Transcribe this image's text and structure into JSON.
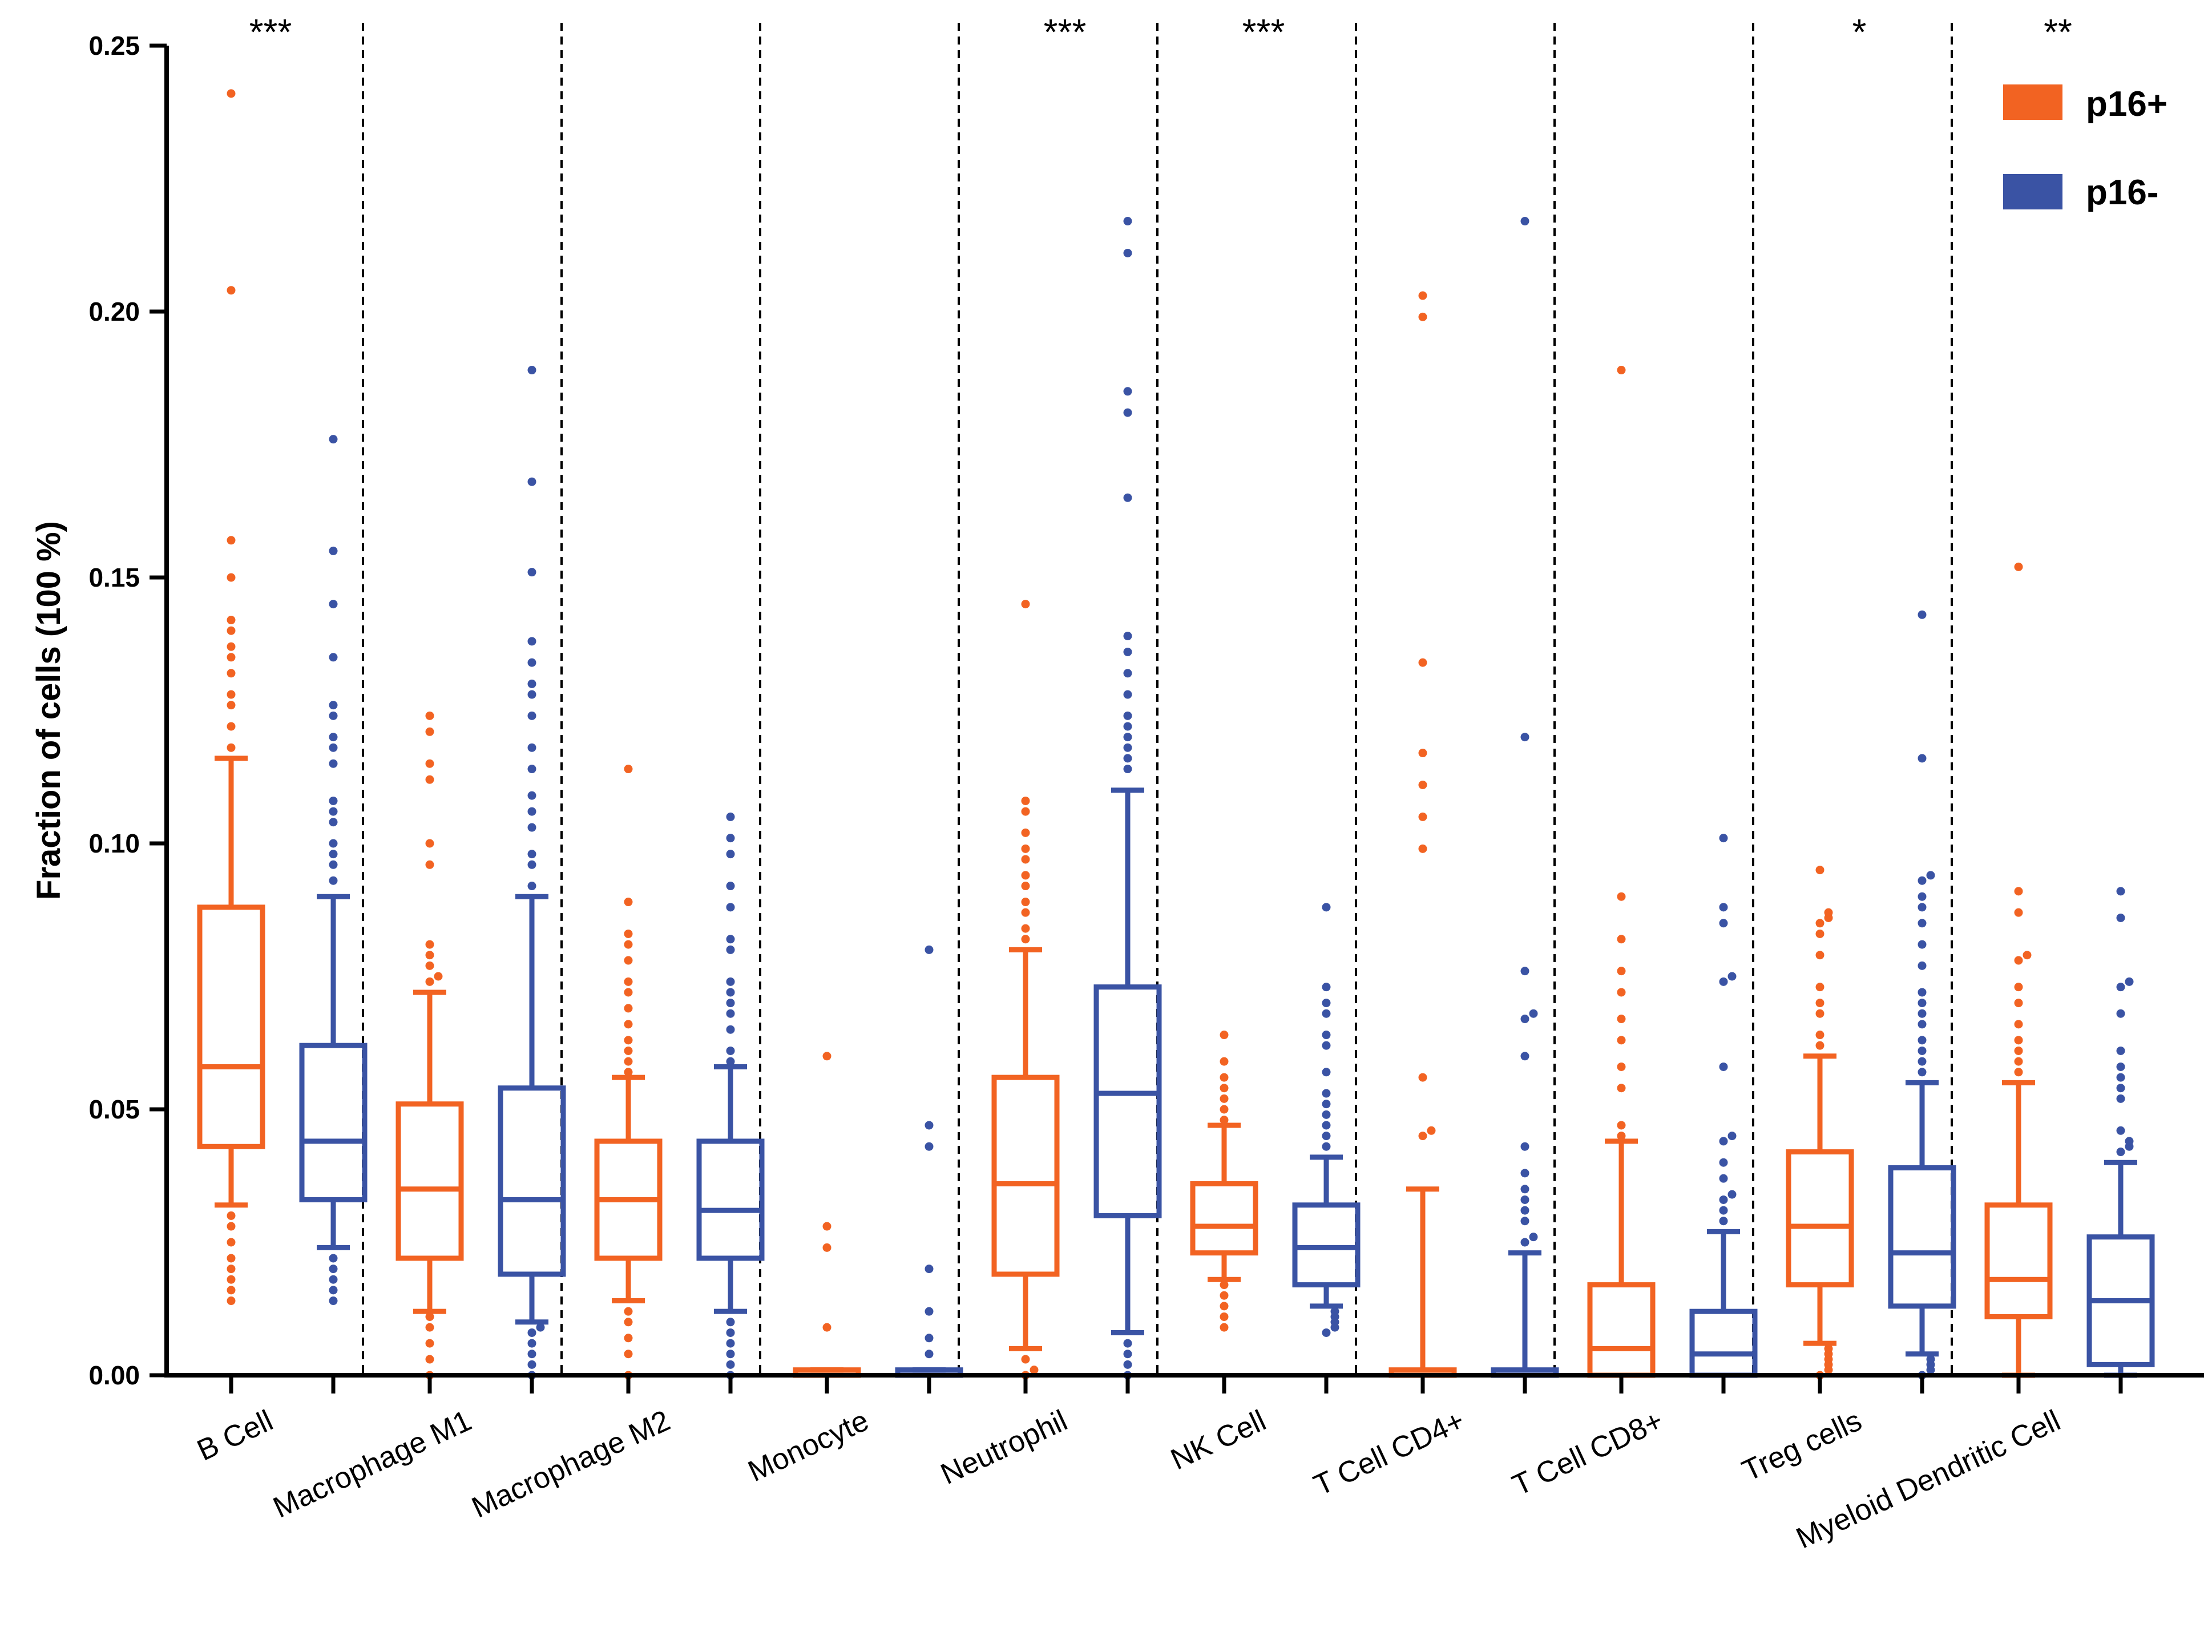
{
  "chart_data": {
    "type": "box",
    "title": "",
    "xlabel": "",
    "ylabel": "Fraction of cells (100 %)",
    "ylim": [
      0,
      0.25
    ],
    "yticks": [
      "0.00",
      "0.05",
      "0.10",
      "0.15",
      "0.20",
      "0.25"
    ],
    "yticks_values": [
      0,
      0.05,
      0.1,
      0.15,
      0.2,
      0.25
    ],
    "grid": false,
    "legend_position": "top-right",
    "series": [
      {
        "name": "p16+",
        "color": "#F26322"
      },
      {
        "name": "p16-",
        "color": "#3A53A4"
      }
    ],
    "categories": [
      {
        "label": "B Cell",
        "significance": "***",
        "p16pos": {
          "whisker_low": 0.032,
          "q1": 0.043,
          "median": 0.058,
          "q3": 0.088,
          "whisker_high": 0.116,
          "outliers": [
            0.241,
            0.204,
            0.157,
            0.15,
            0.142,
            0.14,
            0.137,
            0.135,
            0.132,
            0.128,
            0.126,
            0.122,
            0.118,
            0.03,
            0.028,
            0.025,
            0.022,
            0.02,
            0.018,
            0.016,
            0.014
          ]
        },
        "p16neg": {
          "whisker_low": 0.024,
          "q1": 0.033,
          "median": 0.044,
          "q3": 0.062,
          "whisker_high": 0.09,
          "outliers": [
            0.176,
            0.155,
            0.145,
            0.135,
            0.126,
            0.124,
            0.12,
            0.118,
            0.115,
            0.108,
            0.106,
            0.104,
            0.1,
            0.098,
            0.096,
            0.093,
            0.022,
            0.02,
            0.018,
            0.016,
            0.014
          ]
        }
      },
      {
        "label": "Macrophage M1",
        "significance": "",
        "p16pos": {
          "whisker_low": 0.012,
          "q1": 0.022,
          "median": 0.035,
          "q3": 0.051,
          "whisker_high": 0.072,
          "outliers": [
            0.124,
            0.121,
            0.115,
            0.112,
            0.1,
            0.096,
            0.081,
            0.079,
            0.077,
            0.075,
            0.074,
            0.011,
            0.009,
            0.006,
            0.003,
            0.0
          ]
        },
        "p16neg": {
          "whisker_low": 0.01,
          "q1": 0.019,
          "median": 0.033,
          "q3": 0.054,
          "whisker_high": 0.09,
          "outliers": [
            0.189,
            0.168,
            0.151,
            0.138,
            0.134,
            0.13,
            0.128,
            0.124,
            0.118,
            0.114,
            0.109,
            0.106,
            0.103,
            0.098,
            0.096,
            0.092,
            0.009,
            0.008,
            0.006,
            0.004,
            0.002,
            0.0
          ]
        }
      },
      {
        "label": "Macrophage M2",
        "significance": "",
        "p16pos": {
          "whisker_low": 0.014,
          "q1": 0.022,
          "median": 0.033,
          "q3": 0.044,
          "whisker_high": 0.056,
          "outliers": [
            0.114,
            0.089,
            0.083,
            0.081,
            0.078,
            0.074,
            0.072,
            0.069,
            0.066,
            0.063,
            0.061,
            0.059,
            0.057,
            0.012,
            0.01,
            0.007,
            0.004,
            0.0
          ]
        },
        "p16neg": {
          "whisker_low": 0.012,
          "q1": 0.022,
          "median": 0.031,
          "q3": 0.044,
          "whisker_high": 0.058,
          "outliers": [
            0.105,
            0.101,
            0.098,
            0.092,
            0.088,
            0.082,
            0.08,
            0.074,
            0.072,
            0.07,
            0.068,
            0.065,
            0.061,
            0.059,
            0.01,
            0.008,
            0.006,
            0.004,
            0.002,
            0.0
          ]
        }
      },
      {
        "label": "Monocyte",
        "significance": "",
        "p16pos": {
          "whisker_low": 0.0,
          "q1": 0.0,
          "median": 0.0,
          "q3": 0.001,
          "whisker_high": 0.001,
          "outliers": [
            0.06,
            0.028,
            0.024,
            0.009
          ]
        },
        "p16neg": {
          "whisker_low": 0.0,
          "q1": 0.0,
          "median": 0.0,
          "q3": 0.001,
          "whisker_high": 0.001,
          "outliers": [
            0.08,
            0.047,
            0.043,
            0.02,
            0.012,
            0.007,
            0.004
          ]
        }
      },
      {
        "label": "Neutrophil",
        "significance": "***",
        "p16pos": {
          "whisker_low": 0.005,
          "q1": 0.019,
          "median": 0.036,
          "q3": 0.056,
          "whisker_high": 0.08,
          "outliers": [
            0.145,
            0.108,
            0.106,
            0.102,
            0.099,
            0.097,
            0.094,
            0.092,
            0.089,
            0.087,
            0.084,
            0.082,
            0.003,
            0.001,
            0.0
          ]
        },
        "p16neg": {
          "whisker_low": 0.008,
          "q1": 0.03,
          "median": 0.053,
          "q3": 0.073,
          "whisker_high": 0.11,
          "outliers": [
            0.217,
            0.211,
            0.185,
            0.181,
            0.165,
            0.139,
            0.136,
            0.132,
            0.128,
            0.124,
            0.122,
            0.12,
            0.118,
            0.116,
            0.114,
            0.006,
            0.004,
            0.002,
            0.0
          ]
        }
      },
      {
        "label": "NK Cell",
        "significance": "***",
        "p16pos": {
          "whisker_low": 0.018,
          "q1": 0.023,
          "median": 0.028,
          "q3": 0.036,
          "whisker_high": 0.047,
          "outliers": [
            0.064,
            0.059,
            0.056,
            0.054,
            0.052,
            0.05,
            0.048,
            0.017,
            0.015,
            0.013,
            0.011,
            0.009
          ]
        },
        "p16neg": {
          "whisker_low": 0.013,
          "q1": 0.017,
          "median": 0.024,
          "q3": 0.032,
          "whisker_high": 0.041,
          "outliers": [
            0.088,
            0.073,
            0.07,
            0.068,
            0.064,
            0.062,
            0.057,
            0.053,
            0.051,
            0.049,
            0.047,
            0.045,
            0.043,
            0.012,
            0.011,
            0.01,
            0.009,
            0.008
          ]
        }
      },
      {
        "label": "T Cell CD4+",
        "significance": "",
        "p16pos": {
          "whisker_low": 0.0,
          "q1": 0.0,
          "median": 0.0,
          "q3": 0.001,
          "whisker_high": 0.035,
          "outliers": [
            0.203,
            0.199,
            0.134,
            0.117,
            0.111,
            0.105,
            0.099,
            0.056,
            0.046,
            0.045
          ]
        },
        "p16neg": {
          "whisker_low": 0.0,
          "q1": 0.0,
          "median": 0.0,
          "q3": 0.001,
          "whisker_high": 0.023,
          "outliers": [
            0.217,
            0.12,
            0.076,
            0.068,
            0.067,
            0.06,
            0.043,
            0.038,
            0.035,
            0.033,
            0.031,
            0.029,
            0.026,
            0.025
          ]
        }
      },
      {
        "label": "T Cell CD8+",
        "significance": "",
        "p16pos": {
          "whisker_low": 0.0,
          "q1": 0.0,
          "median": 0.005,
          "q3": 0.017,
          "whisker_high": 0.044,
          "outliers": [
            0.189,
            0.09,
            0.082,
            0.076,
            0.072,
            0.067,
            0.063,
            0.058,
            0.054,
            0.047,
            0.045
          ]
        },
        "p16neg": {
          "whisker_low": 0.0,
          "q1": 0.0,
          "median": 0.004,
          "q3": 0.012,
          "whisker_high": 0.027,
          "outliers": [
            0.101,
            0.088,
            0.085,
            0.075,
            0.074,
            0.058,
            0.045,
            0.044,
            0.04,
            0.037,
            0.034,
            0.033,
            0.031,
            0.029
          ]
        }
      },
      {
        "label": "Treg cells",
        "significance": "*",
        "p16pos": {
          "whisker_low": 0.006,
          "q1": 0.017,
          "median": 0.028,
          "q3": 0.042,
          "whisker_high": 0.06,
          "outliers": [
            0.095,
            0.087,
            0.086,
            0.085,
            0.083,
            0.079,
            0.073,
            0.07,
            0.068,
            0.064,
            0.062,
            0.005,
            0.004,
            0.003,
            0.002,
            0.001,
            0.0
          ]
        },
        "p16neg": {
          "whisker_low": 0.004,
          "q1": 0.013,
          "median": 0.023,
          "q3": 0.039,
          "whisker_high": 0.055,
          "outliers": [
            0.143,
            0.116,
            0.094,
            0.093,
            0.09,
            0.088,
            0.085,
            0.081,
            0.077,
            0.072,
            0.07,
            0.068,
            0.066,
            0.063,
            0.061,
            0.059,
            0.057,
            0.003,
            0.002,
            0.001,
            0.0
          ]
        }
      },
      {
        "label": "Myeloid Dendritic Cell",
        "significance": "**",
        "p16pos": {
          "whisker_low": 0.0,
          "q1": 0.011,
          "median": 0.018,
          "q3": 0.032,
          "whisker_high": 0.055,
          "outliers": [
            0.152,
            0.091,
            0.087,
            0.079,
            0.078,
            0.073,
            0.07,
            0.066,
            0.063,
            0.061,
            0.059,
            0.057
          ]
        },
        "p16neg": {
          "whisker_low": 0.0,
          "q1": 0.002,
          "median": 0.014,
          "q3": 0.026,
          "whisker_high": 0.04,
          "outliers": [
            0.091,
            0.086,
            0.074,
            0.073,
            0.068,
            0.061,
            0.058,
            0.056,
            0.054,
            0.052,
            0.046,
            0.044,
            0.043,
            0.042
          ]
        }
      }
    ]
  }
}
